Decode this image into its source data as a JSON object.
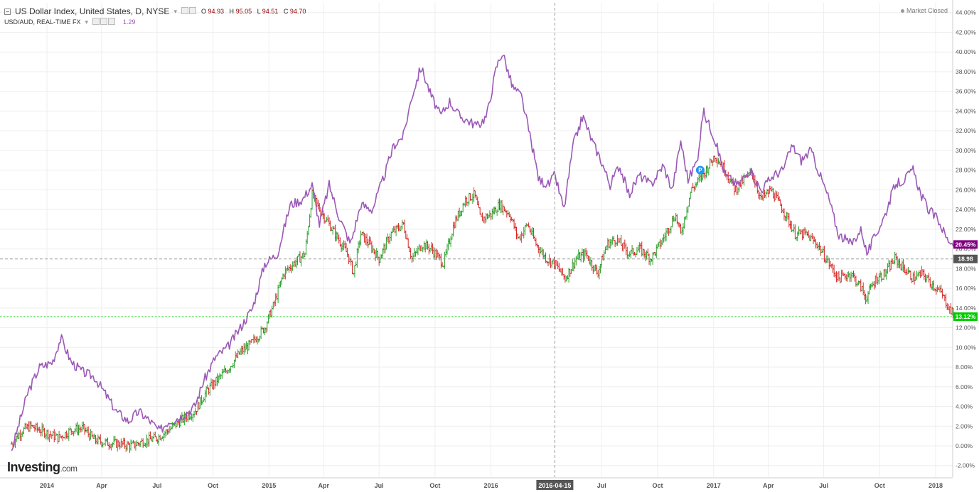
{
  "header": {
    "main_symbol": "US Dollar Index, United States, D, NYSE",
    "ohlc": [
      {
        "key": "O",
        "value": "94.93"
      },
      {
        "key": "H",
        "value": "95.05"
      },
      {
        "key": "L",
        "value": "94.51"
      },
      {
        "key": "C",
        "value": "94.70"
      }
    ],
    "compare_symbol": "USD/AUD, REAL-TIME FX",
    "compare_value": "1.29",
    "market_status": "Market Closed"
  },
  "brand": {
    "name": "Investing",
    "domain": ".com"
  },
  "colors": {
    "candle_up": "#2ca02c",
    "candle_down": "#d62728",
    "compare_line": "#9b59b6",
    "current_price": "#00cc00",
    "compare_badge": "#800080",
    "crosshair_badge": "#555555"
  },
  "chart_data": {
    "type": "line",
    "y_axis_side": "right",
    "y_unit": "%",
    "ylim": [
      -2,
      44
    ],
    "y_ticks": [
      "44.00%",
      "42.00%",
      "40.00%",
      "38.00%",
      "36.00%",
      "34.00%",
      "32.00%",
      "30.00%",
      "28.00%",
      "26.00%",
      "24.00%",
      "22.00%",
      "20.00%",
      "18.00%",
      "16.00%",
      "14.00%",
      "12.00%",
      "10.00%",
      "8.00%",
      "6.00%",
      "4.00%",
      "2.00%",
      "0.00%",
      "-2.00%"
    ],
    "x_ticks": [
      {
        "label": "2014",
        "date": "2014-01-01"
      },
      {
        "label": "Apr",
        "date": "2014-04-01"
      },
      {
        "label": "Jul",
        "date": "2014-07-01"
      },
      {
        "label": "Oct",
        "date": "2014-10-01"
      },
      {
        "label": "2015",
        "date": "2015-01-01"
      },
      {
        "label": "Apr",
        "date": "2015-04-01"
      },
      {
        "label": "Jul",
        "date": "2015-07-01"
      },
      {
        "label": "Oct",
        "date": "2015-10-01"
      },
      {
        "label": "2016",
        "date": "2016-01-01"
      },
      {
        "label": "Jul",
        "date": "2016-07-01"
      },
      {
        "label": "Oct",
        "date": "2016-10-01"
      },
      {
        "label": "2017",
        "date": "2017-01-01"
      },
      {
        "label": "Apr",
        "date": "2017-04-01"
      },
      {
        "label": "Jul",
        "date": "2017-07-01"
      },
      {
        "label": "Oct",
        "date": "2017-10-01"
      },
      {
        "label": "2018",
        "date": "2018-01-01"
      }
    ],
    "x_range": [
      "2013-11-04",
      "2018-02-10"
    ],
    "grid": true,
    "series": [
      {
        "name": "US Dollar Index, United States, D, NYSE",
        "style": "ohlc-bars",
        "points": [
          {
            "x": "2013-11-04",
            "y": 0.2
          },
          {
            "x": "2013-11-20",
            "y": 1.5
          },
          {
            "x": "2013-12-05",
            "y": 2.0
          },
          {
            "x": "2014-01-01",
            "y": 1.3
          },
          {
            "x": "2014-01-20",
            "y": 0.8
          },
          {
            "x": "2014-02-10",
            "y": 1.6
          },
          {
            "x": "2014-03-01",
            "y": 1.8
          },
          {
            "x": "2014-03-20",
            "y": 0.6
          },
          {
            "x": "2014-04-10",
            "y": 0.3
          },
          {
            "x": "2014-05-01",
            "y": 0.2
          },
          {
            "x": "2014-05-20",
            "y": 0.0
          },
          {
            "x": "2014-06-10",
            "y": 0.5
          },
          {
            "x": "2014-07-01",
            "y": 0.8
          },
          {
            "x": "2014-07-20",
            "y": 1.6
          },
          {
            "x": "2014-08-10",
            "y": 2.6
          },
          {
            "x": "2014-09-01",
            "y": 3.5
          },
          {
            "x": "2014-09-20",
            "y": 5.5
          },
          {
            "x": "2014-10-05",
            "y": 6.5
          },
          {
            "x": "2014-10-25",
            "y": 7.8
          },
          {
            "x": "2014-11-15",
            "y": 9.5
          },
          {
            "x": "2014-12-05",
            "y": 10.5
          },
          {
            "x": "2014-12-25",
            "y": 12.0
          },
          {
            "x": "2015-01-10",
            "y": 14.5
          },
          {
            "x": "2015-01-25",
            "y": 17.5
          },
          {
            "x": "2015-02-10",
            "y": 18.5
          },
          {
            "x": "2015-03-01",
            "y": 19.5
          },
          {
            "x": "2015-03-13",
            "y": 25.5
          },
          {
            "x": "2015-03-25",
            "y": 24.0
          },
          {
            "x": "2015-04-10",
            "y": 22.5
          },
          {
            "x": "2015-04-25",
            "y": 21.0
          },
          {
            "x": "2015-05-10",
            "y": 19.5
          },
          {
            "x": "2015-05-20",
            "y": 17.5
          },
          {
            "x": "2015-06-01",
            "y": 21.5
          },
          {
            "x": "2015-06-15",
            "y": 20.5
          },
          {
            "x": "2015-07-01",
            "y": 19.0
          },
          {
            "x": "2015-07-20",
            "y": 21.5
          },
          {
            "x": "2015-08-10",
            "y": 22.5
          },
          {
            "x": "2015-08-24",
            "y": 19.0
          },
          {
            "x": "2015-09-10",
            "y": 20.5
          },
          {
            "x": "2015-09-25",
            "y": 20.0
          },
          {
            "x": "2015-10-15",
            "y": 18.5
          },
          {
            "x": "2015-11-01",
            "y": 22.5
          },
          {
            "x": "2015-11-20",
            "y": 25.0
          },
          {
            "x": "2015-12-05",
            "y": 25.5
          },
          {
            "x": "2015-12-15",
            "y": 23.0
          },
          {
            "x": "2016-01-01",
            "y": 23.5
          },
          {
            "x": "2016-01-15",
            "y": 24.5
          },
          {
            "x": "2016-02-01",
            "y": 23.5
          },
          {
            "x": "2016-02-15",
            "y": 21.0
          },
          {
            "x": "2016-03-01",
            "y": 22.5
          },
          {
            "x": "2016-03-15",
            "y": 20.5
          },
          {
            "x": "2016-04-01",
            "y": 19.0
          },
          {
            "x": "2016-04-15",
            "y": 18.5
          },
          {
            "x": "2016-05-02",
            "y": 17.0
          },
          {
            "x": "2016-05-20",
            "y": 19.0
          },
          {
            "x": "2016-06-05",
            "y": 19.5
          },
          {
            "x": "2016-06-24",
            "y": 17.5
          },
          {
            "x": "2016-07-10",
            "y": 20.5
          },
          {
            "x": "2016-07-25",
            "y": 21.0
          },
          {
            "x": "2016-08-15",
            "y": 19.5
          },
          {
            "x": "2016-09-01",
            "y": 20.0
          },
          {
            "x": "2016-09-20",
            "y": 19.0
          },
          {
            "x": "2016-10-10",
            "y": 21.0
          },
          {
            "x": "2016-10-30",
            "y": 23.5
          },
          {
            "x": "2016-11-08",
            "y": 21.5
          },
          {
            "x": "2016-11-25",
            "y": 26.0
          },
          {
            "x": "2016-12-15",
            "y": 27.5
          },
          {
            "x": "2017-01-03",
            "y": 29.5
          },
          {
            "x": "2017-01-20",
            "y": 28.0
          },
          {
            "x": "2017-02-05",
            "y": 26.0
          },
          {
            "x": "2017-02-20",
            "y": 27.0
          },
          {
            "x": "2017-03-05",
            "y": 27.8
          },
          {
            "x": "2017-03-20",
            "y": 25.0
          },
          {
            "x": "2017-04-05",
            "y": 26.0
          },
          {
            "x": "2017-04-25",
            "y": 24.0
          },
          {
            "x": "2017-05-15",
            "y": 21.5
          },
          {
            "x": "2017-06-01",
            "y": 21.5
          },
          {
            "x": "2017-06-20",
            "y": 20.5
          },
          {
            "x": "2017-07-05",
            "y": 19.0
          },
          {
            "x": "2017-07-25",
            "y": 17.0
          },
          {
            "x": "2017-08-15",
            "y": 17.5
          },
          {
            "x": "2017-09-01",
            "y": 16.0
          },
          {
            "x": "2017-09-08",
            "y": 15.0
          },
          {
            "x": "2017-09-25",
            "y": 17.0
          },
          {
            "x": "2017-10-10",
            "y": 17.5
          },
          {
            "x": "2017-10-26",
            "y": 19.0
          },
          {
            "x": "2017-11-10",
            "y": 18.0
          },
          {
            "x": "2017-11-25",
            "y": 17.0
          },
          {
            "x": "2017-12-10",
            "y": 17.5
          },
          {
            "x": "2017-12-25",
            "y": 16.5
          },
          {
            "x": "2018-01-10",
            "y": 15.5
          },
          {
            "x": "2018-01-25",
            "y": 13.8
          },
          {
            "x": "2018-02-02",
            "y": 13.12
          }
        ]
      },
      {
        "name": "USD/AUD, REAL-TIME FX",
        "style": "line",
        "points": [
          {
            "x": "2013-11-04",
            "y": -0.5
          },
          {
            "x": "2013-11-15",
            "y": 2.0
          },
          {
            "x": "2013-12-01",
            "y": 5.5
          },
          {
            "x": "2013-12-20",
            "y": 8.0
          },
          {
            "x": "2014-01-10",
            "y": 8.5
          },
          {
            "x": "2014-01-24",
            "y": 11.0
          },
          {
            "x": "2014-02-10",
            "y": 8.5
          },
          {
            "x": "2014-03-01",
            "y": 7.5
          },
          {
            "x": "2014-03-20",
            "y": 7.0
          },
          {
            "x": "2014-04-10",
            "y": 5.0
          },
          {
            "x": "2014-04-25",
            "y": 3.5
          },
          {
            "x": "2014-05-15",
            "y": 2.5
          },
          {
            "x": "2014-06-01",
            "y": 3.5
          },
          {
            "x": "2014-06-20",
            "y": 2.5
          },
          {
            "x": "2014-07-05",
            "y": 1.5
          },
          {
            "x": "2014-07-20",
            "y": 2.5
          },
          {
            "x": "2014-08-10",
            "y": 3.0
          },
          {
            "x": "2014-09-01",
            "y": 4.0
          },
          {
            "x": "2014-09-15",
            "y": 6.5
          },
          {
            "x": "2014-10-05",
            "y": 9.0
          },
          {
            "x": "2014-10-25",
            "y": 10.0
          },
          {
            "x": "2014-11-15",
            "y": 12.0
          },
          {
            "x": "2014-12-05",
            "y": 14.0
          },
          {
            "x": "2014-12-25",
            "y": 18.5
          },
          {
            "x": "2015-01-15",
            "y": 19.5
          },
          {
            "x": "2015-02-05",
            "y": 24.5
          },
          {
            "x": "2015-02-25",
            "y": 25.0
          },
          {
            "x": "2015-03-13",
            "y": 26.5
          },
          {
            "x": "2015-03-25",
            "y": 22.5
          },
          {
            "x": "2015-04-10",
            "y": 26.5
          },
          {
            "x": "2015-04-25",
            "y": 23.5
          },
          {
            "x": "2015-05-15",
            "y": 20.5
          },
          {
            "x": "2015-06-01",
            "y": 24.5
          },
          {
            "x": "2015-06-20",
            "y": 24.0
          },
          {
            "x": "2015-07-10",
            "y": 27.5
          },
          {
            "x": "2015-07-25",
            "y": 30.5
          },
          {
            "x": "2015-08-10",
            "y": 31.5
          },
          {
            "x": "2015-08-24",
            "y": 35.5
          },
          {
            "x": "2015-09-08",
            "y": 38.5
          },
          {
            "x": "2015-09-25",
            "y": 35.5
          },
          {
            "x": "2015-10-10",
            "y": 33.5
          },
          {
            "x": "2015-10-25",
            "y": 35.0
          },
          {
            "x": "2015-11-10",
            "y": 33.5
          },
          {
            "x": "2015-11-25",
            "y": 33.0
          },
          {
            "x": "2015-12-10",
            "y": 32.5
          },
          {
            "x": "2015-12-25",
            "y": 33.5
          },
          {
            "x": "2016-01-10",
            "y": 38.5
          },
          {
            "x": "2016-01-20",
            "y": 40.0
          },
          {
            "x": "2016-02-05",
            "y": 36.5
          },
          {
            "x": "2016-02-20",
            "y": 35.5
          },
          {
            "x": "2016-03-05",
            "y": 31.5
          },
          {
            "x": "2016-03-20",
            "y": 27.0
          },
          {
            "x": "2016-04-05",
            "y": 26.5
          },
          {
            "x": "2016-04-15",
            "y": 27.5
          },
          {
            "x": "2016-04-30",
            "y": 24.0
          },
          {
            "x": "2016-05-15",
            "y": 30.5
          },
          {
            "x": "2016-05-31",
            "y": 33.5
          },
          {
            "x": "2016-06-15",
            "y": 31.0
          },
          {
            "x": "2016-06-30",
            "y": 29.0
          },
          {
            "x": "2016-07-15",
            "y": 26.5
          },
          {
            "x": "2016-07-30",
            "y": 28.5
          },
          {
            "x": "2016-08-15",
            "y": 25.5
          },
          {
            "x": "2016-09-01",
            "y": 27.5
          },
          {
            "x": "2016-09-20",
            "y": 26.5
          },
          {
            "x": "2016-10-10",
            "y": 28.5
          },
          {
            "x": "2016-10-25",
            "y": 26.0
          },
          {
            "x": "2016-11-08",
            "y": 31.0
          },
          {
            "x": "2016-11-20",
            "y": 27.0
          },
          {
            "x": "2016-12-05",
            "y": 29.0
          },
          {
            "x": "2016-12-15",
            "y": 34.0
          },
          {
            "x": "2017-01-01",
            "y": 31.5
          },
          {
            "x": "2017-01-20",
            "y": 27.5
          },
          {
            "x": "2017-02-10",
            "y": 26.5
          },
          {
            "x": "2017-03-01",
            "y": 28.0
          },
          {
            "x": "2017-03-20",
            "y": 26.0
          },
          {
            "x": "2017-04-10",
            "y": 27.5
          },
          {
            "x": "2017-04-25",
            "y": 28.0
          },
          {
            "x": "2017-05-10",
            "y": 30.5
          },
          {
            "x": "2017-05-25",
            "y": 29.0
          },
          {
            "x": "2017-06-10",
            "y": 30.0
          },
          {
            "x": "2017-06-25",
            "y": 27.5
          },
          {
            "x": "2017-07-10",
            "y": 25.0
          },
          {
            "x": "2017-07-25",
            "y": 21.5
          },
          {
            "x": "2017-08-15",
            "y": 20.5
          },
          {
            "x": "2017-09-01",
            "y": 22.0
          },
          {
            "x": "2017-09-10",
            "y": 19.5
          },
          {
            "x": "2017-09-25",
            "y": 21.5
          },
          {
            "x": "2017-10-10",
            "y": 23.5
          },
          {
            "x": "2017-10-26",
            "y": 26.5
          },
          {
            "x": "2017-11-10",
            "y": 27.0
          },
          {
            "x": "2017-11-25",
            "y": 28.0
          },
          {
            "x": "2017-12-08",
            "y": 25.5
          },
          {
            "x": "2017-12-20",
            "y": 24.0
          },
          {
            "x": "2018-01-05",
            "y": 23.0
          },
          {
            "x": "2018-01-20",
            "y": 21.0
          },
          {
            "x": "2018-02-02",
            "y": 20.45
          }
        ]
      }
    ],
    "last_value_labels": [
      {
        "series": "USD/AUD, REAL-TIME FX",
        "label": "20.45%",
        "y": 20.45
      },
      {
        "series": "US Dollar Index, United States, D, NYSE",
        "label": "13.12%",
        "y": 13.12
      }
    ],
    "crosshair": {
      "x_label": "2016-04-15",
      "x": "2016-04-15",
      "y_label": "18.98",
      "y": 18.98
    },
    "markers": [
      {
        "label": "P",
        "x": "2016-12-10",
        "y": 28.0
      }
    ]
  }
}
